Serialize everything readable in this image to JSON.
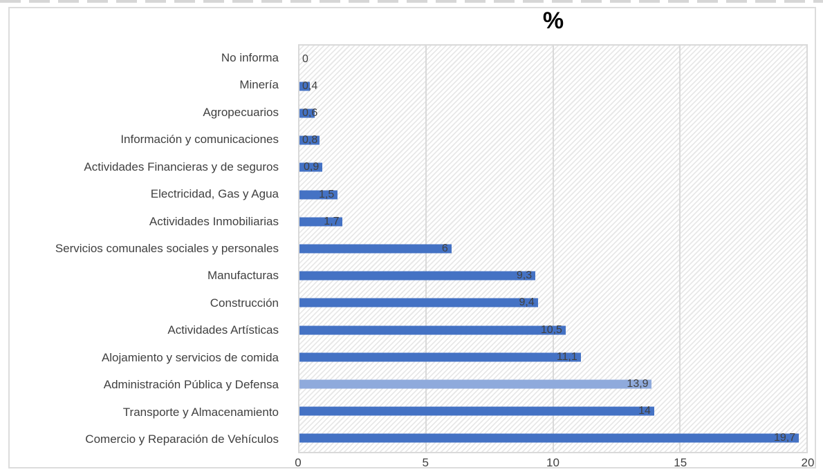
{
  "chart_data": {
    "type": "bar",
    "orientation": "horizontal",
    "title": "%",
    "categories": [
      "No informa",
      "Minería",
      "Agropecuarios",
      "Información y comunicaciones",
      "Actividades Financieras y de seguros",
      "Electricidad, Gas y Agua",
      "Actividades Inmobiliarias",
      "Servicios comunales sociales y personales",
      "Manufacturas",
      "Construcción",
      "Actividades Artísticas",
      "Alojamiento y servicios de comida",
      "Administración Pública y Defensa",
      "Transporte y Almacenamiento",
      "Comercio y Reparación de Vehículos"
    ],
    "values": [
      0,
      0.4,
      0.6,
      0.8,
      0.9,
      1.5,
      1.7,
      6,
      9.3,
      9.4,
      10.5,
      11.1,
      13.9,
      14,
      19.7
    ],
    "value_labels": [
      "0",
      "0,4",
      "0,6",
      "0,8",
      "0,9",
      "1,5",
      "1,7",
      "6",
      "9,3",
      "9,4",
      "10,5",
      "11,1",
      "13,9",
      "14",
      "19,7"
    ],
    "xlabel": "",
    "ylabel": "",
    "xlim": [
      0,
      20
    ],
    "x_ticks": [
      0,
      5,
      10,
      15,
      20
    ],
    "grid": true,
    "legend": "none",
    "data_label_position": "inside-end",
    "highlight_index": 12,
    "colors": {
      "bar": "#4472C4",
      "bar_highlight": "#8FAADC",
      "gridline": "#D9D9D9",
      "plot_border": "#D9D9D9",
      "hatch": "#E8E8E8",
      "text": "#404040",
      "title_text": "#000000",
      "frame_border": "#DCDCDC"
    }
  }
}
